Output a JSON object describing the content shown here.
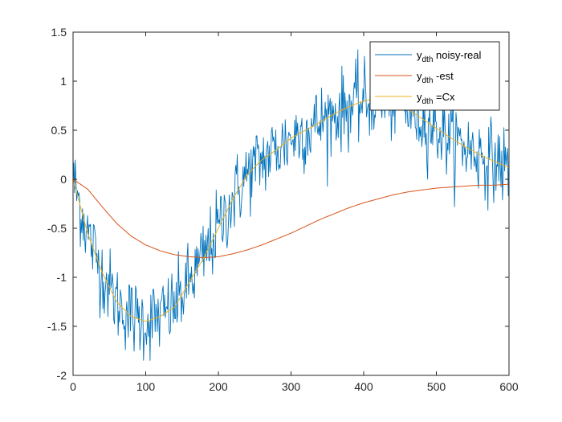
{
  "chart_data": {
    "type": "line",
    "title": "",
    "xlabel": "",
    "ylabel": "",
    "xlim": [
      0,
      600
    ],
    "ylim": [
      -2,
      1.5
    ],
    "xticks": [
      0,
      100,
      200,
      300,
      400,
      500,
      600
    ],
    "xtick_labels": [
      "0",
      "100",
      "200",
      "300",
      "400",
      "500",
      "600"
    ],
    "yticks": [
      -2,
      -1.5,
      -1,
      -0.5,
      0,
      0.5,
      1,
      1.5
    ],
    "ytick_labels": [
      "-2",
      "-1.5",
      "-1",
      "-0.5",
      "0",
      "0.5",
      "1",
      "1.5"
    ],
    "grid": false,
    "legend_position": "top-right",
    "series": [
      {
        "name": "noisy-real",
        "legend_main": "y",
        "legend_sub": "dth",
        "legend_suffix": " noisy-real",
        "color": "#0072BD",
        "noise_amplitude": 0.2,
        "x": [
          0,
          20,
          40,
          60,
          80,
          100,
          120,
          140,
          160,
          180,
          200,
          220,
          240,
          260,
          280,
          300,
          320,
          340,
          360,
          380,
          400,
          420,
          440,
          460,
          480,
          500,
          520,
          540,
          560,
          580,
          600
        ],
        "values": [
          0,
          -0.55,
          -0.95,
          -1.25,
          -1.4,
          -1.45,
          -1.4,
          -1.3,
          -1.05,
          -0.8,
          -0.5,
          -0.2,
          0.05,
          0.2,
          0.3,
          0.42,
          0.5,
          0.58,
          0.67,
          0.74,
          0.8,
          0.82,
          0.8,
          0.72,
          0.62,
          0.52,
          0.42,
          0.33,
          0.25,
          0.18,
          0.12
        ]
      },
      {
        "name": "-est",
        "legend_main": "y",
        "legend_sub": "dth",
        "legend_suffix": " -est",
        "color": "#D95319",
        "x": [
          0,
          20,
          40,
          60,
          80,
          100,
          120,
          140,
          160,
          180,
          200,
          220,
          240,
          260,
          280,
          300,
          320,
          340,
          360,
          380,
          400,
          420,
          440,
          460,
          480,
          500,
          520,
          540,
          560,
          580,
          600
        ],
        "values": [
          0,
          -0.1,
          -0.28,
          -0.45,
          -0.58,
          -0.67,
          -0.73,
          -0.77,
          -0.79,
          -0.8,
          -0.79,
          -0.76,
          -0.72,
          -0.67,
          -0.61,
          -0.55,
          -0.48,
          -0.41,
          -0.35,
          -0.29,
          -0.24,
          -0.2,
          -0.16,
          -0.13,
          -0.11,
          -0.09,
          -0.08,
          -0.07,
          -0.06,
          -0.06,
          -0.05
        ]
      },
      {
        "name": "=Cx",
        "legend_main": "y",
        "legend_sub": "dth",
        "legend_suffix": " =Cx",
        "color": "#EDB120",
        "x": [
          0,
          20,
          40,
          60,
          80,
          100,
          120,
          140,
          160,
          180,
          200,
          220,
          240,
          260,
          280,
          300,
          320,
          340,
          360,
          380,
          400,
          420,
          440,
          460,
          480,
          500,
          520,
          540,
          560,
          580,
          600
        ],
        "values": [
          0,
          -0.55,
          -0.95,
          -1.25,
          -1.4,
          -1.45,
          -1.4,
          -1.3,
          -1.05,
          -0.8,
          -0.5,
          -0.2,
          0.05,
          0.2,
          0.3,
          0.42,
          0.5,
          0.58,
          0.67,
          0.74,
          0.8,
          0.82,
          0.8,
          0.72,
          0.62,
          0.52,
          0.42,
          0.33,
          0.25,
          0.18,
          0.12
        ]
      }
    ]
  }
}
